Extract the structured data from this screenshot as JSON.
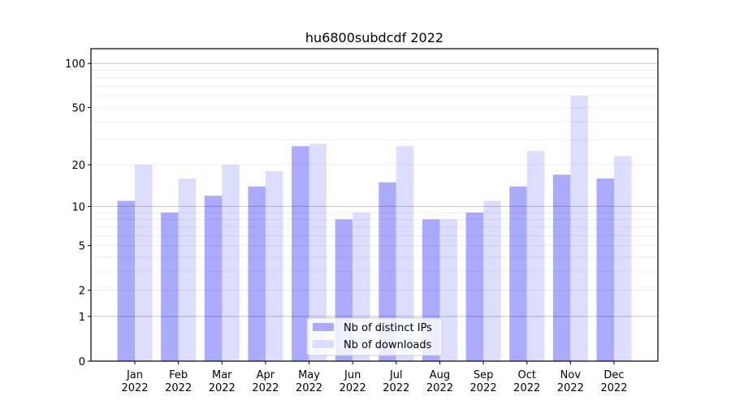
{
  "chart_data": {
    "type": "bar",
    "title": "hu6800subdcdf 2022",
    "xlabel": "",
    "ylabel": "",
    "yscale": "symlog (log10(1+y))",
    "ylim": [
      0,
      120
    ],
    "yticks": [
      0,
      1,
      2,
      5,
      10,
      20,
      50,
      100
    ],
    "grid": true,
    "legend_position": "bottom-center",
    "categories": [
      "Jan\n2022",
      "Feb\n2022",
      "Mar\n2022",
      "Apr\n2022",
      "May\n2022",
      "Jun\n2022",
      "Jul\n2022",
      "Aug\n2022",
      "Sep\n2022",
      "Oct\n2022",
      "Nov\n2022",
      "Dec\n2022"
    ],
    "series": [
      {
        "name": "Nb of distinct IPs",
        "color": "#aaaaff",
        "values": [
          11,
          9,
          12,
          14,
          27,
          8,
          15,
          8,
          9,
          14,
          17,
          16
        ]
      },
      {
        "name": "Nb of downloads",
        "color": "#ddddff",
        "values": [
          20,
          16,
          20,
          18,
          28,
          9,
          27,
          8,
          11,
          25,
          60,
          23
        ]
      }
    ]
  }
}
